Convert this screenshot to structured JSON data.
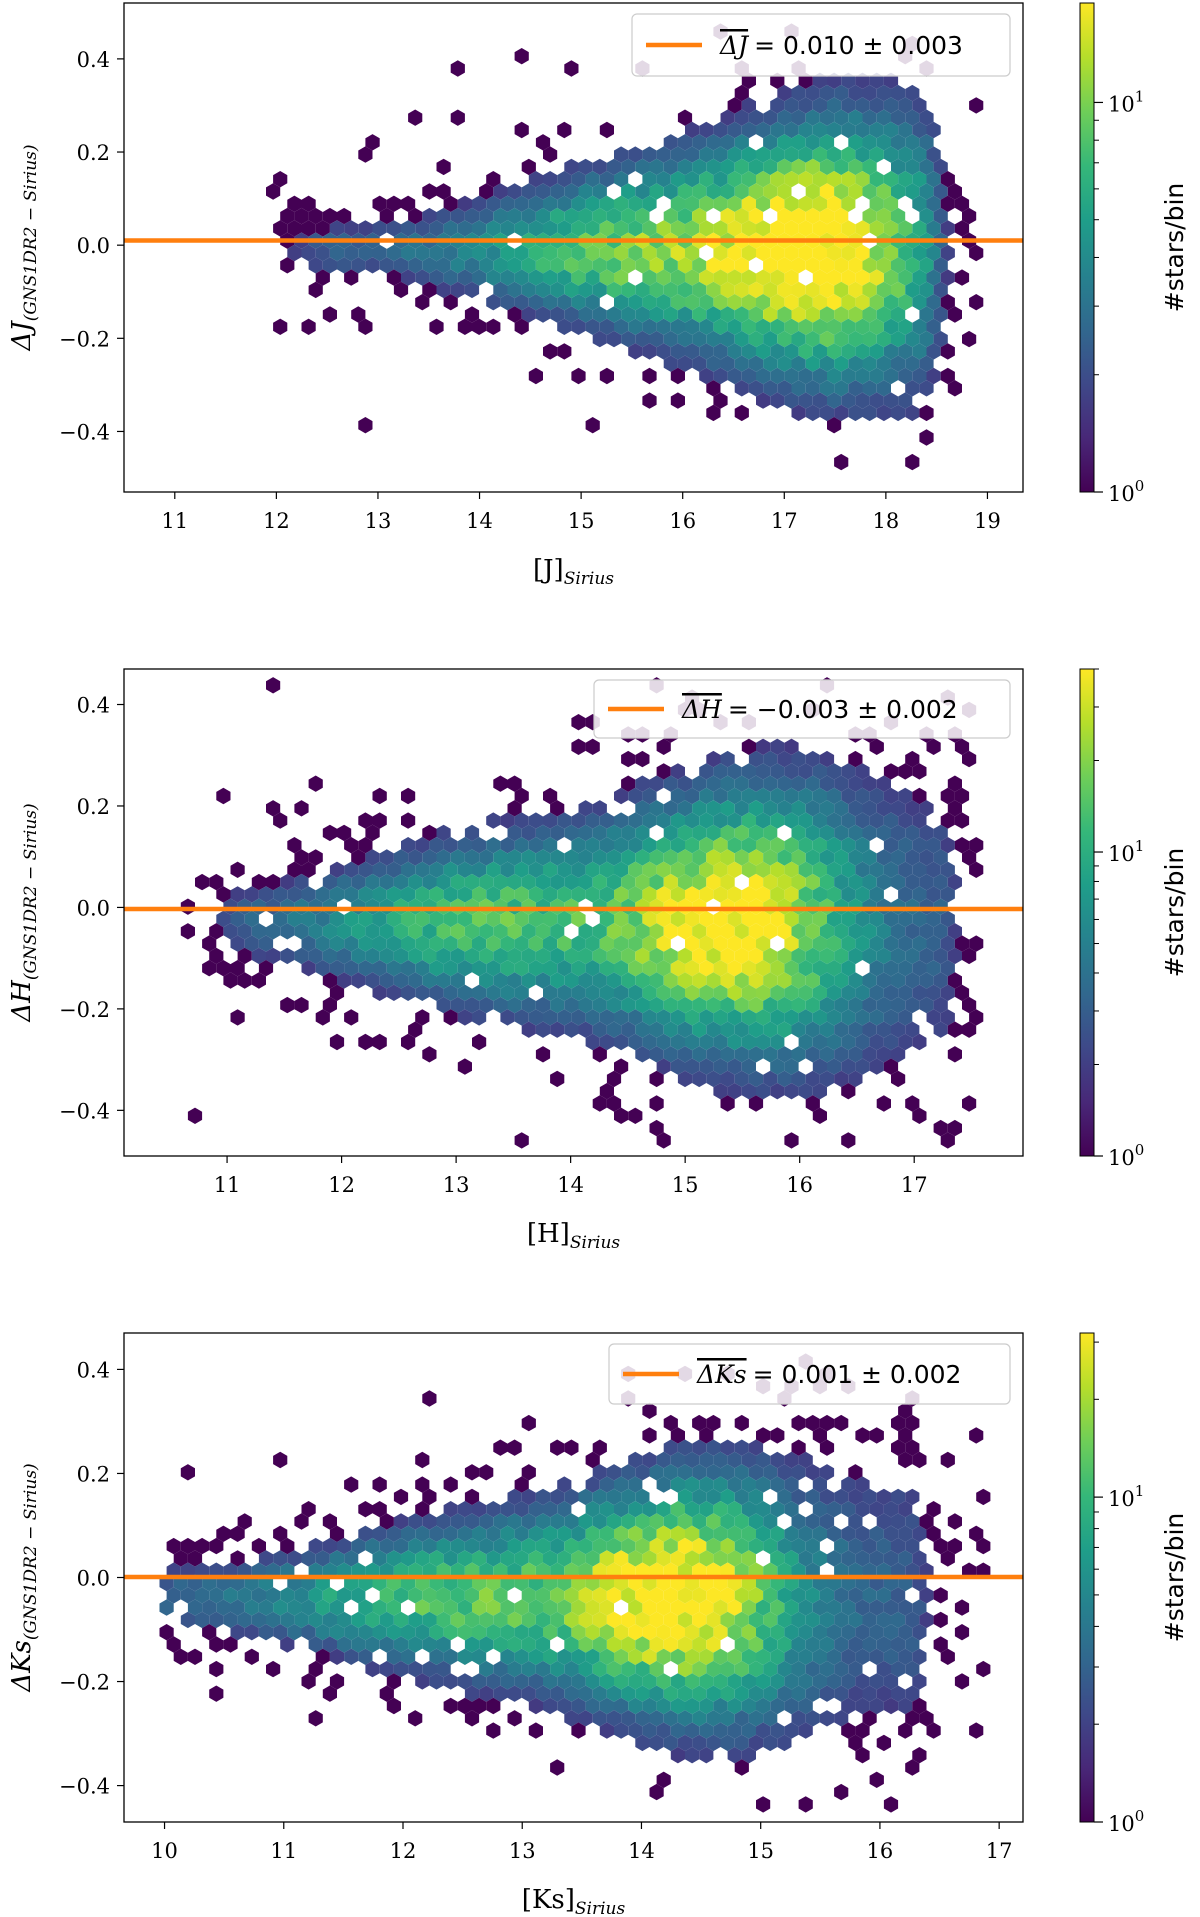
{
  "chart_data": [
    {
      "type": "hexbin",
      "panel": "J",
      "xlabel_main": "[J]",
      "xlabel_sub": "Sirius",
      "ylabel_main": "ΔJ",
      "ylabel_sub": "(GNS1DR2 − Sirius)",
      "xlim": [
        10.5,
        19.35
      ],
      "ylim": [
        -0.53,
        0.52
      ],
      "xticks": [
        11,
        12,
        13,
        14,
        15,
        16,
        17,
        18,
        19
      ],
      "yticks": [
        -0.4,
        -0.2,
        0.0,
        0.2,
        0.4
      ],
      "ytick_labels": [
        "−0.4",
        "−0.2",
        "0.0",
        "0.2",
        "0.4"
      ],
      "mean_line": 0.01,
      "legend_label": "ΔJ = 0.010 ± 0.003",
      "legend_symbol": "ΔJ",
      "legend_value": "= 0.010 ± 0.003",
      "colorbar": {
        "label": "#stars/bin",
        "ticks": [
          "10",
          "10"
        ],
        "tick_exponents": [
          "0",
          "1"
        ],
        "max": 18
      },
      "density_peak": {
        "x": 17.3,
        "y": -0.03
      }
    },
    {
      "type": "hexbin",
      "panel": "H",
      "xlabel_main": "[H]",
      "xlabel_sub": "Sirius",
      "ylabel_main": "ΔH",
      "ylabel_sub": "(GNS1DR2 − Sirius)",
      "xlim": [
        10.1,
        17.95
      ],
      "ylim": [
        -0.49,
        0.47
      ],
      "xticks": [
        11,
        12,
        13,
        14,
        15,
        16,
        17
      ],
      "yticks": [
        -0.4,
        -0.2,
        0.0,
        0.2,
        0.4
      ],
      "ytick_labels": [
        "−0.4",
        "−0.2",
        "0.0",
        "0.2",
        "0.4"
      ],
      "mean_line": -0.003,
      "legend_label": "ΔH = −0.003 ± 0.002",
      "legend_symbol": "ΔH",
      "legend_value": "= −0.003 ± 0.002",
      "colorbar": {
        "label": "#stars/bin",
        "ticks": [
          "10",
          "10"
        ],
        "tick_exponents": [
          "0",
          "1"
        ],
        "max": 40
      },
      "density_peak": {
        "x": 15.3,
        "y": -0.03
      }
    },
    {
      "type": "hexbin",
      "panel": "Ks",
      "xlabel_main": "[Ks]",
      "xlabel_sub": "Sirius",
      "ylabel_main": "ΔKs",
      "ylabel_sub": "(GNS1DR2 − Sirius)",
      "xlim": [
        9.66,
        17.2
      ],
      "ylim": [
        -0.47,
        0.47
      ],
      "xticks": [
        10,
        11,
        12,
        13,
        14,
        15,
        16,
        17
      ],
      "yticks": [
        -0.4,
        -0.2,
        0.0,
        0.2,
        0.4
      ],
      "ytick_labels": [
        "−0.4",
        "−0.2",
        "0.0",
        "0.2",
        "0.4"
      ],
      "mean_line": 0.001,
      "legend_label": "ΔKs = 0.001 ± 0.002",
      "legend_symbol": "ΔKs",
      "legend_value": "= 0.001 ± 0.002",
      "colorbar": {
        "label": "#stars/bin",
        "ticks": [
          "10",
          "10"
        ],
        "tick_exponents": [
          "0",
          "1"
        ],
        "max": 32
      },
      "density_peak": {
        "x": 14.3,
        "y": -0.05
      }
    }
  ],
  "colors": {
    "mean_line": "#ff7f0e",
    "viridis": [
      "#440154",
      "#482878",
      "#3e4989",
      "#31688e",
      "#26828e",
      "#1f9e89",
      "#35b779",
      "#6ece58",
      "#b5de2b",
      "#fde725"
    ]
  }
}
